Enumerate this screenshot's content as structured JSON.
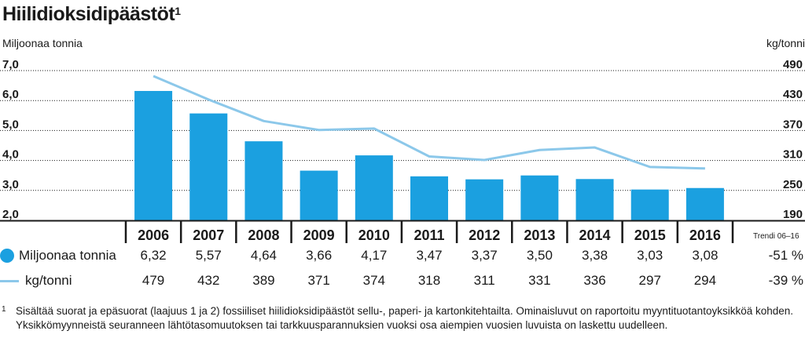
{
  "title": "Hiilidioksidipäästöt",
  "title_mark": "1",
  "left_unit": "Miljoonaa tonnia",
  "right_unit": "kg/tonni",
  "trend_header": "Trendi 06–16",
  "colors": {
    "bar": "#1ba0e0",
    "line": "#8cc8ea",
    "axis": "#1a1a1a"
  },
  "chart_data": {
    "type": "bar",
    "categories": [
      "2006",
      "2007",
      "2008",
      "2009",
      "2010",
      "2011",
      "2012",
      "2013",
      "2014",
      "2015",
      "2016"
    ],
    "series": [
      {
        "name": "Miljoonaa tonnia",
        "type": "bar",
        "axis": "left",
        "values": [
          6.32,
          5.57,
          4.64,
          3.66,
          4.17,
          3.47,
          3.37,
          3.5,
          3.38,
          3.03,
          3.08
        ],
        "labels": [
          "6,32",
          "5,57",
          "4,64",
          "3,66",
          "4,17",
          "3,47",
          "3,37",
          "3,50",
          "3,38",
          "3,03",
          "3,08"
        ],
        "trend": "-51 %"
      },
      {
        "name": "kg/tonni",
        "type": "line",
        "axis": "right",
        "values": [
          479,
          432,
          389,
          371,
          374,
          318,
          311,
          331,
          336,
          297,
          294
        ],
        "labels": [
          "479",
          "432",
          "389",
          "371",
          "374",
          "318",
          "311",
          "331",
          "336",
          "297",
          "294"
        ],
        "trend": "-39 %"
      }
    ],
    "y_left": {
      "ylim": [
        2.0,
        7.0
      ],
      "ticks": [
        "7,0",
        "6,0",
        "5,0",
        "4,0",
        "3,0",
        "2,0"
      ]
    },
    "y_right": {
      "ylim": [
        190,
        490
      ],
      "ticks": [
        "490",
        "430",
        "370",
        "310",
        "250",
        "190"
      ]
    },
    "grid": true
  },
  "footnote": {
    "mark": "1",
    "text": "Sisältää suorat ja epäsuorat (laajuus 1 ja 2) fossiiliset hiilidioksidipäästöt sellu-, paperi- ja kartonkitehtailta. Ominaisluvut on raportoitu myyntituotantoyksikköä kohden. Yksikkömyynneistä seuranneen lähtötasomuutoksen tai tarkkuusparannuksien vuoksi osa aiempien vuosien luvuista on laskettu uudelleen."
  }
}
